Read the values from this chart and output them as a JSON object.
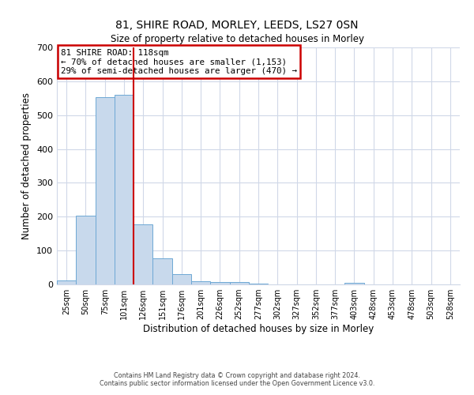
{
  "title": "81, SHIRE ROAD, MORLEY, LEEDS, LS27 0SN",
  "subtitle": "Size of property relative to detached houses in Morley",
  "xlabel": "Distribution of detached houses by size in Morley",
  "ylabel": "Number of detached properties",
  "bin_labels": [
    "25sqm",
    "50sqm",
    "75sqm",
    "101sqm",
    "126sqm",
    "151sqm",
    "176sqm",
    "201sqm",
    "226sqm",
    "252sqm",
    "277sqm",
    "302sqm",
    "327sqm",
    "352sqm",
    "377sqm",
    "403sqm",
    "428sqm",
    "453sqm",
    "478sqm",
    "503sqm",
    "528sqm"
  ],
  "bar_values": [
    12,
    203,
    553,
    560,
    178,
    78,
    30,
    10,
    7,
    8,
    3,
    0,
    0,
    0,
    0,
    5,
    0,
    0,
    0,
    0,
    0
  ],
  "bar_color": "#c8d9ec",
  "bar_edgecolor": "#6ea8d5",
  "vline_color": "#cc0000",
  "ylim": [
    0,
    700
  ],
  "yticks": [
    0,
    100,
    200,
    300,
    400,
    500,
    600,
    700
  ],
  "annotation_title": "81 SHIRE ROAD: 118sqm",
  "annotation_line1": "← 70% of detached houses are smaller (1,153)",
  "annotation_line2": "29% of semi-detached houses are larger (470) →",
  "annotation_box_color": "#cc0000",
  "footer_line1": "Contains HM Land Registry data © Crown copyright and database right 2024.",
  "footer_line2": "Contains public sector information licensed under the Open Government Licence v3.0.",
  "background_color": "#ffffff",
  "grid_color": "#d0d8e8"
}
